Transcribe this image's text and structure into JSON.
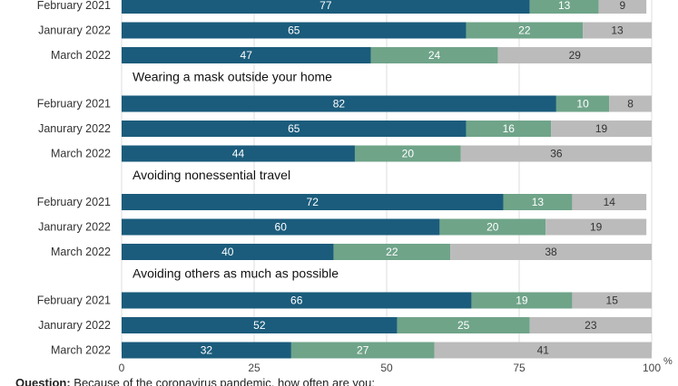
{
  "chart_data": {
    "type": "bar",
    "orientation": "horizontal",
    "stacked": true,
    "unit_label": "%",
    "xlim": [
      0,
      100
    ],
    "x_ticks": [
      0,
      25,
      50,
      75,
      100
    ],
    "grid": true,
    "series_colors": [
      "#1b5c7c",
      "#6fa489",
      "#bbbbbb"
    ],
    "groups": [
      {
        "title": "",
        "rows": [
          {
            "label": "February 2021",
            "values": [
              77,
              13,
              9
            ]
          },
          {
            "label": "Janurary 2022",
            "values": [
              65,
              22,
              13
            ]
          },
          {
            "label": "March 2022",
            "values": [
              47,
              24,
              29
            ]
          }
        ]
      },
      {
        "title": "Wearing a mask outside your home",
        "rows": [
          {
            "label": "February 2021",
            "values": [
              82,
              10,
              8
            ]
          },
          {
            "label": "Janurary 2022",
            "values": [
              65,
              16,
              19
            ]
          },
          {
            "label": "March 2022",
            "values": [
              44,
              20,
              36
            ]
          }
        ]
      },
      {
        "title": "Avoiding nonessential travel",
        "rows": [
          {
            "label": "February 2021",
            "values": [
              72,
              13,
              14
            ]
          },
          {
            "label": "Janurary 2022",
            "values": [
              60,
              20,
              19
            ]
          },
          {
            "label": "March 2022",
            "values": [
              40,
              22,
              38
            ]
          }
        ]
      },
      {
        "title": "Avoiding others as much as possible",
        "rows": [
          {
            "label": "February 2021",
            "values": [
              66,
              19,
              15
            ]
          },
          {
            "label": "Janurary 2022",
            "values": [
              52,
              25,
              23
            ]
          },
          {
            "label": "March 2022",
            "values": [
              32,
              27,
              41
            ]
          }
        ]
      }
    ],
    "footnote": {
      "bold": "Question:",
      "text": " Because of the coronavirus pandemic, how often are you:"
    }
  }
}
